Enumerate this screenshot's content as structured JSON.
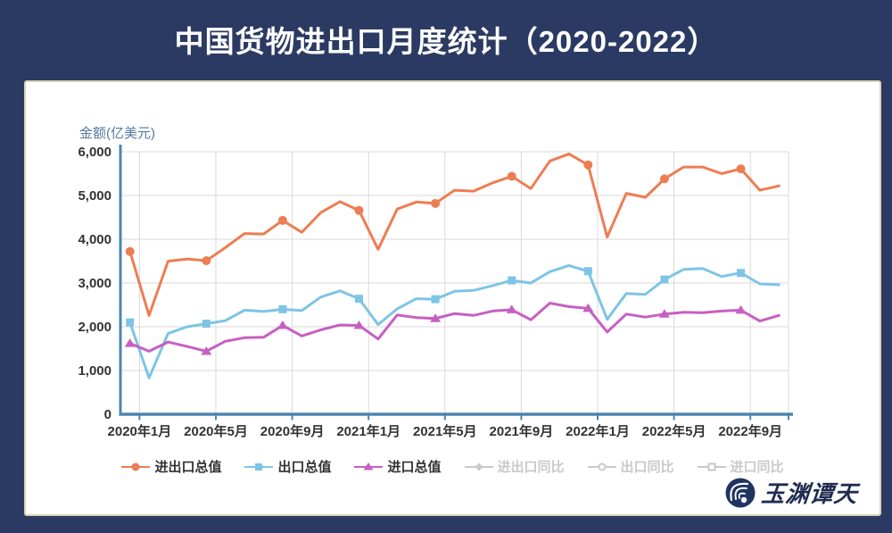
{
  "title": "中国货物进出口月度统计（2020-2022）",
  "watermark": {
    "brand": "玉渊谭天"
  },
  "colors": {
    "background": "#2B3A63",
    "card_border": "#DCD2B2",
    "title_text": "#FFFFFF",
    "axis": "#4E86B0",
    "grid": "#D9D9D9",
    "tick_text": "#333333",
    "axis_name_text": "#54799F",
    "inactive_legend": "#C9C9C9",
    "watermark_text": "#1F2C50"
  },
  "chart_data": {
    "type": "line",
    "title": "中国货物进出口月度统计（2020-2022）",
    "xlabel": "",
    "ylabel": "金额(亿美元)",
    "ylim": [
      0,
      6000
    ],
    "ytick_step": 1000,
    "grid": true,
    "legend_position": "bottom",
    "x_tick_labels": [
      "2020年1月",
      "2020年5月",
      "2020年9月",
      "2021年1月",
      "2021年5月",
      "2021年9月",
      "2022年1月",
      "2022年5月",
      "2022年9月"
    ],
    "categories": [
      "2020年1月",
      "2020年2月",
      "2020年3月",
      "2020年4月",
      "2020年5月",
      "2020年6月",
      "2020年7月",
      "2020年8月",
      "2020年9月",
      "2020年10月",
      "2020年11月",
      "2020年12月",
      "2021年1月",
      "2021年2月",
      "2021年3月",
      "2021年4月",
      "2021年5月",
      "2021年6月",
      "2021年7月",
      "2021年8月",
      "2021年9月",
      "2021年10月",
      "2021年11月",
      "2021年12月",
      "2022年1月",
      "2022年2月",
      "2022年3月",
      "2022年4月",
      "2022年5月",
      "2022年6月",
      "2022年7月",
      "2022年8月",
      "2022年9月",
      "2022年10月",
      "2022年11月"
    ],
    "series": [
      {
        "name": "进出口总值",
        "color": "#ED7D53",
        "marker": "circle",
        "active": true,
        "values": [
          3720,
          2260,
          3500,
          3550,
          3510,
          3810,
          4130,
          4120,
          4430,
          4160,
          4610,
          4860,
          4660,
          3770,
          4690,
          4850,
          4820,
          5120,
          5100,
          5290,
          5440,
          5160,
          5790,
          5950,
          5700,
          4050,
          5050,
          4960,
          5380,
          5650,
          5650,
          5500,
          5610,
          5120,
          5220
        ]
      },
      {
        "name": "出口总值",
        "color": "#7EC4E6",
        "marker": "square",
        "active": true,
        "values": [
          2100,
          830,
          1850,
          2000,
          2070,
          2140,
          2380,
          2350,
          2400,
          2370,
          2680,
          2820,
          2640,
          2050,
          2410,
          2640,
          2630,
          2810,
          2830,
          2940,
          3060,
          3000,
          3260,
          3400,
          3270,
          2170,
          2760,
          2740,
          3080,
          3310,
          3330,
          3150,
          3230,
          2980,
          2960
        ]
      },
      {
        "name": "进口总值",
        "color": "#C75FC3",
        "marker": "triangle",
        "active": true,
        "values": [
          1620,
          1440,
          1650,
          1550,
          1440,
          1670,
          1750,
          1760,
          2030,
          1790,
          1930,
          2040,
          2030,
          1720,
          2270,
          2210,
          2190,
          2300,
          2260,
          2360,
          2390,
          2160,
          2540,
          2460,
          2420,
          1880,
          2290,
          2220,
          2290,
          2330,
          2320,
          2360,
          2380,
          2130,
          2260
        ]
      },
      {
        "name": "进出口同比",
        "color": "#C9C9C9",
        "marker": "diamond",
        "active": false,
        "values": []
      },
      {
        "name": "出口同比",
        "color": "#C9C9C9",
        "marker": "circle-open",
        "active": false,
        "values": []
      },
      {
        "name": "进口同比",
        "color": "#C9C9C9",
        "marker": "square-open",
        "active": false,
        "values": []
      }
    ]
  }
}
